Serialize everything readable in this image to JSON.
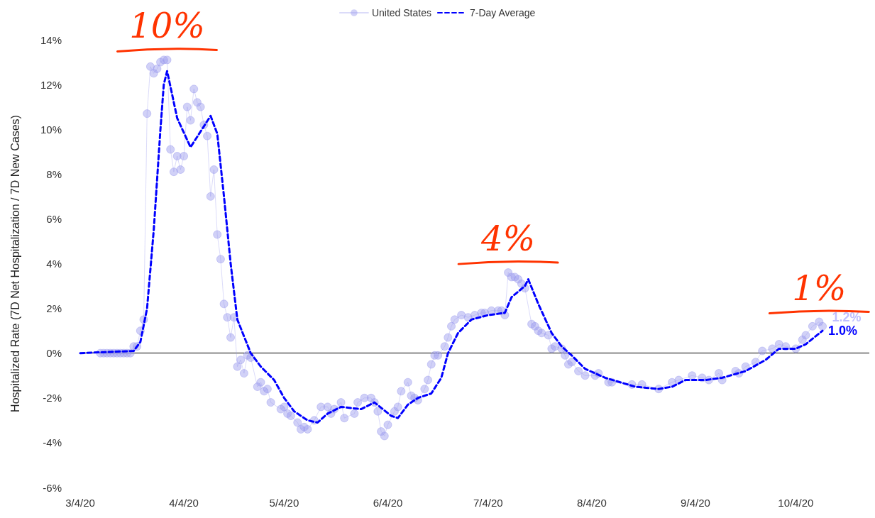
{
  "chart_data": {
    "type": "line",
    "ylabel": "Hospitalized Rate (7D Net Hospitalization / 7D New Cases)",
    "xlim": [
      "2020-03-04",
      "2020-10-26"
    ],
    "xticks": [
      {
        "value": "2020-03-04",
        "label": "3/4/20"
      },
      {
        "value": "2020-04-04",
        "label": "4/4/20"
      },
      {
        "value": "2020-05-04",
        "label": "5/4/20"
      },
      {
        "value": "2020-06-04",
        "label": "6/4/20"
      },
      {
        "value": "2020-07-04",
        "label": "7/4/20"
      },
      {
        "value": "2020-08-04",
        "label": "8/4/20"
      },
      {
        "value": "2020-09-04",
        "label": "9/4/20"
      },
      {
        "value": "2020-10-04",
        "label": "10/4/20"
      }
    ],
    "ylim": [
      -6,
      14
    ],
    "yticks": [
      {
        "value": -6,
        "label": "-6%"
      },
      {
        "value": -4,
        "label": "-4%"
      },
      {
        "value": -2,
        "label": "-2%"
      },
      {
        "value": 0,
        "label": "0%"
      },
      {
        "value": 2,
        "label": "2%"
      },
      {
        "value": 4,
        "label": "4%"
      },
      {
        "value": 6,
        "label": "6%"
      },
      {
        "value": 8,
        "label": "8%"
      },
      {
        "value": 10,
        "label": "10%"
      },
      {
        "value": 12,
        "label": "12%"
      },
      {
        "value": 14,
        "label": "14%"
      }
    ],
    "grid": false,
    "legend": "top",
    "ref_lines": [
      {
        "axis": "y",
        "value": 0,
        "color": "#000000"
      }
    ],
    "annotations": [
      {
        "text": "10%",
        "x": "2020-03-30",
        "y": 13.1
      },
      {
        "text": "4%",
        "x": "2020-07-10",
        "y": 3.6
      },
      {
        "text": "1%",
        "x": "2020-10-11",
        "y": 1.4
      }
    ],
    "series": [
      {
        "name": "United States",
        "color": "#9999ee",
        "marker": "circle",
        "line_style": "solid",
        "x": [
          "2020-03-10",
          "2020-03-11",
          "2020-03-12",
          "2020-03-13",
          "2020-03-14",
          "2020-03-15",
          "2020-03-16",
          "2020-03-17",
          "2020-03-18",
          "2020-03-19",
          "2020-03-20",
          "2020-03-21",
          "2020-03-22",
          "2020-03-23",
          "2020-03-24",
          "2020-03-25",
          "2020-03-26",
          "2020-03-27",
          "2020-03-28",
          "2020-03-29",
          "2020-03-30",
          "2020-03-31",
          "2020-04-01",
          "2020-04-02",
          "2020-04-03",
          "2020-04-04",
          "2020-04-05",
          "2020-04-06",
          "2020-04-07",
          "2020-04-08",
          "2020-04-09",
          "2020-04-10",
          "2020-04-11",
          "2020-04-12",
          "2020-04-13",
          "2020-04-14",
          "2020-04-15",
          "2020-04-16",
          "2020-04-17",
          "2020-04-18",
          "2020-04-19",
          "2020-04-20",
          "2020-04-21",
          "2020-04-22",
          "2020-04-23",
          "2020-04-24",
          "2020-04-26",
          "2020-04-27",
          "2020-04-28",
          "2020-04-29",
          "2020-04-30",
          "2020-05-03",
          "2020-05-04",
          "2020-05-05",
          "2020-05-06",
          "2020-05-08",
          "2020-05-09",
          "2020-05-10",
          "2020-05-11",
          "2020-05-13",
          "2020-05-15",
          "2020-05-17",
          "2020-05-18",
          "2020-05-19",
          "2020-05-21",
          "2020-05-22",
          "2020-05-25",
          "2020-05-26",
          "2020-05-28",
          "2020-05-30",
          "2020-05-31",
          "2020-06-01",
          "2020-06-02",
          "2020-06-03",
          "2020-06-04",
          "2020-06-06",
          "2020-06-07",
          "2020-06-08",
          "2020-06-10",
          "2020-06-11",
          "2020-06-12",
          "2020-06-13",
          "2020-06-15",
          "2020-06-16",
          "2020-06-17",
          "2020-06-18",
          "2020-06-19",
          "2020-06-21",
          "2020-06-22",
          "2020-06-23",
          "2020-06-24",
          "2020-06-26",
          "2020-06-28",
          "2020-06-30",
          "2020-07-02",
          "2020-07-03",
          "2020-07-05",
          "2020-07-07",
          "2020-07-08",
          "2020-07-09",
          "2020-07-10",
          "2020-07-11",
          "2020-07-12",
          "2020-07-13",
          "2020-07-14",
          "2020-07-15",
          "2020-07-17",
          "2020-07-18",
          "2020-07-19",
          "2020-07-20",
          "2020-07-22",
          "2020-07-23",
          "2020-07-24",
          "2020-07-26",
          "2020-07-27",
          "2020-07-28",
          "2020-07-29",
          "2020-07-31",
          "2020-08-02",
          "2020-08-05",
          "2020-08-06",
          "2020-08-09",
          "2020-08-10",
          "2020-08-16",
          "2020-08-19",
          "2020-08-24",
          "2020-08-28",
          "2020-08-30",
          "2020-09-03",
          "2020-09-06",
          "2020-09-08",
          "2020-09-11",
          "2020-09-12",
          "2020-09-16",
          "2020-09-17",
          "2020-09-19",
          "2020-09-22",
          "2020-09-24",
          "2020-09-27",
          "2020-09-29",
          "2020-10-01",
          "2020-10-04",
          "2020-10-06",
          "2020-10-07",
          "2020-10-09",
          "2020-10-11",
          "2020-10-12"
        ],
        "values": [
          0,
          0,
          0,
          0,
          0,
          0,
          0,
          0,
          0,
          0,
          0.3,
          0.3,
          1.0,
          1.5,
          10.7,
          12.8,
          12.5,
          12.7,
          13.0,
          13.1,
          13.1,
          9.1,
          8.1,
          8.8,
          8.2,
          8.8,
          11.0,
          10.4,
          11.8,
          11.2,
          11.0,
          10.2,
          9.7,
          7.0,
          8.2,
          5.3,
          4.2,
          2.2,
          1.6,
          0.7,
          1.6,
          -0.6,
          -0.3,
          -0.9,
          -0.1,
          -0.2,
          -1.5,
          -1.3,
          -1.7,
          -1.6,
          -2.2,
          -2.5,
          -2.4,
          -2.7,
          -2.8,
          -3.1,
          -3.4,
          -3.3,
          -3.4,
          -3.0,
          -2.4,
          -2.4,
          -2.7,
          -2.5,
          -2.2,
          -2.9,
          -2.7,
          -2.2,
          -2.0,
          -2.0,
          -2.2,
          -2.6,
          -3.5,
          -3.7,
          -3.2,
          -2.6,
          -2.4,
          -1.7,
          -1.3,
          -1.9,
          -2.0,
          -2.1,
          -1.6,
          -1.2,
          -0.5,
          -0.1,
          -0.1,
          0.3,
          0.7,
          1.2,
          1.5,
          1.7,
          1.6,
          1.7,
          1.8,
          1.8,
          1.9,
          1.9,
          1.9,
          1.7,
          3.6,
          3.4,
          3.4,
          3.3,
          3.1,
          2.9,
          1.3,
          1.2,
          1.0,
          0.9,
          0.8,
          0.2,
          0.3,
          0.2,
          -0.1,
          -0.5,
          -0.4,
          -0.8,
          -1.0,
          -1.0,
          -0.9,
          -1.3,
          -1.3,
          -1.4,
          -1.4,
          -1.6,
          -1.3,
          -1.2,
          -1.0,
          -1.1,
          -1.2,
          -0.9,
          -1.2,
          -0.8,
          -0.9,
          -0.6,
          -0.4,
          0.1,
          0.2,
          0.4,
          0.3,
          0.2,
          0.6,
          0.8,
          1.2,
          1.4,
          1.2
        ],
        "value_labels": [
          null,
          null,
          null,
          null,
          null,
          null,
          null,
          null,
          null,
          null,
          null,
          null,
          null,
          null,
          null,
          null,
          null,
          null,
          null,
          null,
          null,
          null,
          null,
          null,
          null,
          null,
          null,
          null,
          null,
          null,
          null,
          null,
          null,
          null,
          null,
          null,
          null,
          null,
          null,
          null,
          null,
          null,
          null,
          null,
          null,
          null,
          null,
          null,
          null,
          null,
          null,
          null,
          null,
          null,
          null,
          null,
          null,
          null,
          null,
          null,
          null,
          null,
          null,
          null,
          null,
          null,
          null,
          null,
          null,
          null,
          null,
          null,
          null,
          null,
          null,
          null,
          null,
          null,
          null,
          null,
          null,
          null,
          null,
          null,
          null,
          null,
          null,
          null,
          null,
          null,
          null,
          null,
          null,
          null,
          null,
          null,
          null,
          null,
          null,
          null,
          null,
          null,
          null,
          null,
          null,
          null,
          null,
          null,
          null,
          null,
          null,
          null,
          null,
          null,
          null,
          null,
          null,
          null,
          null,
          null,
          null,
          null,
          null,
          null,
          null,
          null,
          null,
          null,
          null,
          null,
          null,
          null,
          null,
          null,
          null,
          null,
          null,
          null,
          null,
          null,
          null,
          null,
          null,
          null,
          null,
          null,
          "1.2%"
        ]
      },
      {
        "name": "7-Day Average",
        "color": "#0000ff",
        "marker": "none",
        "line_style": "dashed",
        "x": [
          "2020-03-04",
          "2020-03-20",
          "2020-03-22",
          "2020-03-24",
          "2020-03-26",
          "2020-03-28",
          "2020-03-29",
          "2020-03-30",
          "2020-04-02",
          "2020-04-06",
          "2020-04-12",
          "2020-04-14",
          "2020-04-16",
          "2020-04-18",
          "2020-04-20",
          "2020-04-24",
          "2020-04-27",
          "2020-05-01",
          "2020-05-04",
          "2020-05-07",
          "2020-05-11",
          "2020-05-14",
          "2020-05-17",
          "2020-05-21",
          "2020-05-27",
          "2020-05-31",
          "2020-06-05",
          "2020-06-07",
          "2020-06-10",
          "2020-06-13",
          "2020-06-17",
          "2020-06-20",
          "2020-06-22",
          "2020-06-25",
          "2020-06-29",
          "2020-07-04",
          "2020-07-09",
          "2020-07-11",
          "2020-07-15",
          "2020-07-16",
          "2020-07-19",
          "2020-07-23",
          "2020-07-26",
          "2020-07-29",
          "2020-08-02",
          "2020-08-08",
          "2020-08-17",
          "2020-08-24",
          "2020-08-28",
          "2020-09-01",
          "2020-09-07",
          "2020-09-12",
          "2020-09-19",
          "2020-09-25",
          "2020-09-29",
          "2020-10-04",
          "2020-10-07",
          "2020-10-12"
        ],
        "values": [
          0,
          0.1,
          0.5,
          2.0,
          5.5,
          10.0,
          12.0,
          12.6,
          10.5,
          9.2,
          10.6,
          9.8,
          7.0,
          4.0,
          1.5,
          0,
          -0.6,
          -1.2,
          -2.0,
          -2.6,
          -3.0,
          -3.1,
          -2.7,
          -2.4,
          -2.5,
          -2.2,
          -2.8,
          -2.9,
          -2.3,
          -2.0,
          -1.8,
          -1.1,
          0,
          0.9,
          1.5,
          1.7,
          1.8,
          2.5,
          3.0,
          3.3,
          2.2,
          0.9,
          0.3,
          -0.1,
          -0.7,
          -1.1,
          -1.5,
          -1.6,
          -1.5,
          -1.2,
          -1.2,
          -1.1,
          -0.8,
          -0.3,
          0.2,
          0.2,
          0.4,
          1.0
        ],
        "value_labels": [
          null,
          null,
          null,
          null,
          null,
          null,
          null,
          null,
          null,
          null,
          null,
          null,
          null,
          null,
          null,
          null,
          null,
          null,
          null,
          null,
          null,
          null,
          null,
          null,
          null,
          null,
          null,
          null,
          null,
          null,
          null,
          null,
          null,
          null,
          null,
          null,
          null,
          null,
          null,
          null,
          null,
          null,
          null,
          null,
          null,
          null,
          null,
          null,
          null,
          null,
          null,
          null,
          null,
          null,
          null,
          null,
          null,
          "1.0%"
        ]
      }
    ]
  }
}
